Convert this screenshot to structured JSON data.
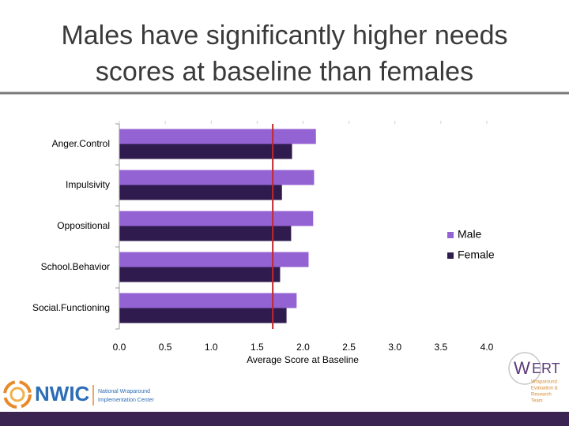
{
  "chart_data": {
    "type": "hbar",
    "title": "Males have significantly higher needs scores at baseline than females",
    "categories": [
      "Anger.Control",
      "Impulsivity",
      "Oppositional",
      "School.Behavior",
      "Social.Functioning"
    ],
    "series": [
      {
        "name": "Male",
        "color": "#9463d3",
        "values": [
          2.14,
          2.12,
          2.11,
          2.06,
          1.93
        ]
      },
      {
        "name": "Female",
        "color": "#2f1b4e",
        "values": [
          1.88,
          1.77,
          1.87,
          1.75,
          1.82
        ]
      }
    ],
    "xlabel": "Average Score at Baseline",
    "xlim": [
      0,
      4
    ],
    "xticks": [
      {
        "value": 0,
        "label": "0.0"
      },
      {
        "value": 0.5,
        "label": "0.5"
      },
      {
        "value": 1,
        "label": "1.0"
      },
      {
        "value": 1.5,
        "label": "1.5"
      },
      {
        "value": 2,
        "label": "2.0"
      },
      {
        "value": 2.5,
        "label": "2.5"
      },
      {
        "value": 3,
        "label": "3.0"
      },
      {
        "value": 3.5,
        "label": "3.5"
      },
      {
        "value": 4,
        "label": "4.0"
      }
    ],
    "reference_line": {
      "value": 1.67,
      "color": "#c0282d"
    },
    "legend": "right",
    "grid": false
  },
  "logos": {
    "nwic": {
      "name": "NWIC",
      "tagline": [
        "National Wraparound",
        "Implementation Center"
      ]
    },
    "wert": {
      "name_w": "W",
      "name_rest": "ERT",
      "tagline": [
        "Wraparound",
        "Evaluation &",
        "Research",
        "Team"
      ]
    }
  }
}
